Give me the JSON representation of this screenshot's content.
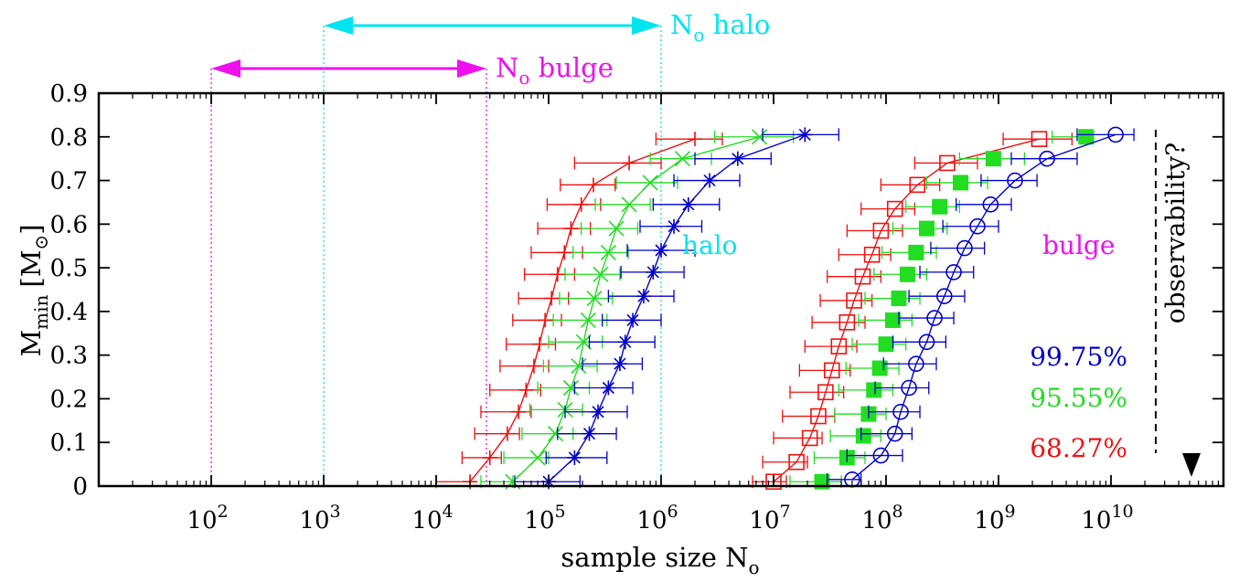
{
  "chart_data": {
    "type": "scatter",
    "x_scale": "log",
    "xlim": [
      10.0,
      100000000000.0
    ],
    "ylim": [
      0,
      0.9
    ],
    "xlabel": {
      "text": "sample size N",
      "subscript": "o"
    },
    "ylabel": {
      "text": "M",
      "subscript": "min",
      "unit": "[M",
      "unit_subscript": "⊙",
      "unit_close": "]"
    },
    "x_ticks": [
      {
        "value": 100,
        "base": "10",
        "exp": "2"
      },
      {
        "value": 1000,
        "base": "10",
        "exp": "3"
      },
      {
        "value": 10000,
        "base": "10",
        "exp": "4"
      },
      {
        "value": 100000,
        "base": "10",
        "exp": "5"
      },
      {
        "value": 1000000,
        "base": "10",
        "exp": "6"
      },
      {
        "value": 10000000,
        "base": "10",
        "exp": "7"
      },
      {
        "value": 100000000,
        "base": "10",
        "exp": "8"
      },
      {
        "value": 1000000000,
        "base": "10",
        "exp": "9"
      },
      {
        "value": 10000000000,
        "base": "10",
        "exp": "10"
      }
    ],
    "y_ticks": [
      "0",
      "0.1",
      "0.2",
      "0.3",
      "0.4",
      "0.5",
      "0.6",
      "0.7",
      "0.8",
      "0.9"
    ],
    "y_tick_values": [
      0,
      0.1,
      0.2,
      0.3,
      0.4,
      0.5,
      0.6,
      0.7,
      0.8,
      0.9
    ],
    "series_labels": {
      "halo": "halo",
      "bulge": "bulge"
    },
    "confidence_levels": [
      {
        "text": "99.75%",
        "color": "#0000cc"
      },
      {
        "text": "95.55%",
        "color": "#22dd22"
      },
      {
        "text": "68.27%",
        "color": "#ee1111"
      }
    ],
    "observability": {
      "text": "observability?",
      "x": 25000000000
    },
    "ranges": [
      {
        "name": "halo",
        "label": "N",
        "label_sub": "o",
        "label_rest": " halo",
        "from": 1000,
        "to": 1000000,
        "color": "#00e5ee"
      },
      {
        "name": "bulge",
        "label": "N",
        "label_sub": "o",
        "label_rest": " bulge",
        "from": 100,
        "to": 28000,
        "color": "#ee11ee"
      }
    ],
    "series": [
      {
        "group": "halo",
        "level": "68.27%",
        "color": "#ee1111",
        "marker": "plus",
        "curve": true,
        "points": [
          {
            "x": 20000,
            "y": 0.01,
            "lo": 10000,
            "hi": 20000
          },
          {
            "x": 30000,
            "y": 0.065,
            "lo": 17000,
            "hi": 38000
          },
          {
            "x": 43000,
            "y": 0.12,
            "lo": 22000,
            "hi": 55000
          },
          {
            "x": 54000,
            "y": 0.17,
            "lo": 25000,
            "hi": 70000
          },
          {
            "x": 63000,
            "y": 0.22,
            "lo": 30000,
            "hi": 85000
          },
          {
            "x": 74000,
            "y": 0.275,
            "lo": 37000,
            "hi": 100000
          },
          {
            "x": 83000,
            "y": 0.325,
            "lo": 42000,
            "hi": 115000
          },
          {
            "x": 93000,
            "y": 0.38,
            "lo": 48000,
            "hi": 130000
          },
          {
            "x": 106000,
            "y": 0.43,
            "lo": 54000,
            "hi": 150000
          },
          {
            "x": 120000,
            "y": 0.485,
            "lo": 61000,
            "hi": 170000
          },
          {
            "x": 138000,
            "y": 0.535,
            "lo": 70000,
            "hi": 200000
          },
          {
            "x": 158000,
            "y": 0.59,
            "lo": 80000,
            "hi": 235000
          },
          {
            "x": 195000,
            "y": 0.645,
            "lo": 97000,
            "hi": 290000
          },
          {
            "x": 250000,
            "y": 0.69,
            "lo": 127000,
            "hi": 390000
          },
          {
            "x": 520000,
            "y": 0.74,
            "lo": 170000,
            "hi": 1000000
          },
          {
            "x": 2000000,
            "y": 0.795,
            "lo": 900000,
            "hi": 3500000
          }
        ]
      },
      {
        "group": "halo",
        "level": "95.55%",
        "color": "#22dd22",
        "marker": "cross",
        "curve": true,
        "points": [
          {
            "x": 48000,
            "y": 0.01,
            "lo": 25000,
            "hi": 48000
          },
          {
            "x": 80000,
            "y": 0.065,
            "lo": 40000,
            "hi": 100000
          },
          {
            "x": 115000,
            "y": 0.12,
            "lo": 58000,
            "hi": 165000
          },
          {
            "x": 140000,
            "y": 0.175,
            "lo": 68000,
            "hi": 200000
          },
          {
            "x": 158000,
            "y": 0.225,
            "lo": 80000,
            "hi": 230000
          },
          {
            "x": 185000,
            "y": 0.275,
            "lo": 90000,
            "hi": 270000
          },
          {
            "x": 205000,
            "y": 0.33,
            "lo": 100000,
            "hi": 300000
          },
          {
            "x": 225000,
            "y": 0.38,
            "lo": 110000,
            "hi": 330000
          },
          {
            "x": 255000,
            "y": 0.43,
            "lo": 125000,
            "hi": 370000
          },
          {
            "x": 290000,
            "y": 0.485,
            "lo": 140000,
            "hi": 430000
          },
          {
            "x": 340000,
            "y": 0.535,
            "lo": 165000,
            "hi": 510000
          },
          {
            "x": 400000,
            "y": 0.59,
            "lo": 195000,
            "hi": 620000
          },
          {
            "x": 520000,
            "y": 0.645,
            "lo": 260000,
            "hi": 800000
          },
          {
            "x": 800000,
            "y": 0.695,
            "lo": 400000,
            "hi": 1400000
          },
          {
            "x": 1550000,
            "y": 0.75,
            "lo": 800000,
            "hi": 2800000
          },
          {
            "x": 7500000,
            "y": 0.8,
            "lo": 3000000,
            "hi": 15000000
          }
        ]
      },
      {
        "group": "halo",
        "level": "99.75%",
        "color": "#0000cc",
        "marker": "star",
        "curve": true,
        "points": [
          {
            "x": 100000,
            "y": 0.01,
            "lo": 50000,
            "hi": 190000
          },
          {
            "x": 170000,
            "y": 0.065,
            "lo": 95000,
            "hi": 330000
          },
          {
            "x": 230000,
            "y": 0.12,
            "lo": 120000,
            "hi": 400000
          },
          {
            "x": 275000,
            "y": 0.17,
            "lo": 140000,
            "hi": 500000
          },
          {
            "x": 340000,
            "y": 0.225,
            "lo": 170000,
            "hi": 560000
          },
          {
            "x": 430000,
            "y": 0.28,
            "lo": 200000,
            "hi": 680000
          },
          {
            "x": 480000,
            "y": 0.33,
            "lo": 230000,
            "hi": 880000
          },
          {
            "x": 560000,
            "y": 0.38,
            "lo": 300000,
            "hi": 1000000
          },
          {
            "x": 700000,
            "y": 0.435,
            "lo": 340000,
            "hi": 1300000
          },
          {
            "x": 850000,
            "y": 0.49,
            "lo": 440000,
            "hi": 1600000
          },
          {
            "x": 1000000,
            "y": 0.54,
            "lo": 500000,
            "hi": 2000000
          },
          {
            "x": 1300000,
            "y": 0.595,
            "lo": 650000,
            "hi": 2300000
          },
          {
            "x": 1750000,
            "y": 0.645,
            "lo": 850000,
            "hi": 3300000
          },
          {
            "x": 2700000,
            "y": 0.7,
            "lo": 1300000,
            "hi": 5000000
          },
          {
            "x": 4800000,
            "y": 0.75,
            "lo": 2000000,
            "hi": 9500000
          },
          {
            "x": 19000000,
            "y": 0.805,
            "lo": 8000000,
            "hi": 38000000
          }
        ]
      },
      {
        "group": "bulge",
        "level": "68.27%",
        "color": "#ee1111",
        "marker": "open-square",
        "curve": true,
        "points": [
          {
            "x": 10000000,
            "y": 0.01,
            "lo": 6500000,
            "hi": 13000000
          },
          {
            "x": 16000000,
            "y": 0.055,
            "lo": 8000000,
            "hi": 20000000
          },
          {
            "x": 21000000,
            "y": 0.11,
            "lo": 10000000,
            "hi": 27000000
          },
          {
            "x": 25000000,
            "y": 0.16,
            "lo": 12000000,
            "hi": 35000000
          },
          {
            "x": 29000000,
            "y": 0.215,
            "lo": 14000000,
            "hi": 42000000
          },
          {
            "x": 33000000,
            "y": 0.265,
            "lo": 17000000,
            "hi": 48000000
          },
          {
            "x": 38000000,
            "y": 0.32,
            "lo": 19000000,
            "hi": 55000000
          },
          {
            "x": 45000000,
            "y": 0.375,
            "lo": 22000000,
            "hi": 65000000
          },
          {
            "x": 52000000,
            "y": 0.425,
            "lo": 26000000,
            "hi": 75000000
          },
          {
            "x": 62000000,
            "y": 0.48,
            "lo": 30000000,
            "hi": 90000000
          },
          {
            "x": 75000000,
            "y": 0.53,
            "lo": 38000000,
            "hi": 110000000
          },
          {
            "x": 90000000,
            "y": 0.585,
            "lo": 45000000,
            "hi": 140000000
          },
          {
            "x": 120000000,
            "y": 0.635,
            "lo": 60000000,
            "hi": 180000000
          },
          {
            "x": 190000000,
            "y": 0.69,
            "lo": 90000000,
            "hi": 300000000
          },
          {
            "x": 350000000,
            "y": 0.74,
            "lo": 180000000,
            "hi": 650000000
          },
          {
            "x": 2300000000,
            "y": 0.795,
            "lo": 1100000000,
            "hi": 4500000000
          }
        ]
      },
      {
        "group": "bulge",
        "level": "95.55%",
        "color": "#22dd22",
        "marker": "filled-square",
        "curve": false,
        "points": [
          {
            "x": 27000000,
            "y": 0.01,
            "lo": 14000000,
            "hi": 40000000
          },
          {
            "x": 45000000,
            "y": 0.065,
            "lo": 23000000,
            "hi": 65000000
          },
          {
            "x": 63000000,
            "y": 0.115,
            "lo": 32000000,
            "hi": 90000000
          },
          {
            "x": 70000000,
            "y": 0.165,
            "lo": 35000000,
            "hi": 100000000
          },
          {
            "x": 78000000,
            "y": 0.22,
            "lo": 38000000,
            "hi": 115000000
          },
          {
            "x": 88000000,
            "y": 0.27,
            "lo": 44000000,
            "hi": 130000000
          },
          {
            "x": 100000000,
            "y": 0.325,
            "lo": 50000000,
            "hi": 150000000
          },
          {
            "x": 115000000,
            "y": 0.38,
            "lo": 57000000,
            "hi": 170000000
          },
          {
            "x": 130000000,
            "y": 0.43,
            "lo": 65000000,
            "hi": 200000000
          },
          {
            "x": 155000000,
            "y": 0.485,
            "lo": 78000000,
            "hi": 230000000
          },
          {
            "x": 185000000,
            "y": 0.535,
            "lo": 92000000,
            "hi": 280000000
          },
          {
            "x": 230000000,
            "y": 0.59,
            "lo": 115000000,
            "hi": 350000000
          },
          {
            "x": 300000000,
            "y": 0.64,
            "lo": 150000000,
            "hi": 450000000
          },
          {
            "x": 460000000,
            "y": 0.695,
            "lo": 230000000,
            "hi": 800000000
          },
          {
            "x": 900000000,
            "y": 0.75,
            "lo": 450000000,
            "hi": 1700000000
          },
          {
            "x": 6000000000,
            "y": 0.8,
            "lo": 3000000000,
            "hi": 7000000000
          }
        ]
      },
      {
        "group": "bulge",
        "level": "99.75%",
        "color": "#0000cc",
        "marker": "open-circle",
        "curve": true,
        "points": [
          {
            "x": 50000000,
            "y": 0.015,
            "lo": 30000000,
            "hi": 60000000
          },
          {
            "x": 90000000,
            "y": 0.07,
            "lo": 45000000,
            "hi": 140000000
          },
          {
            "x": 120000000,
            "y": 0.12,
            "lo": 60000000,
            "hi": 170000000
          },
          {
            "x": 135000000,
            "y": 0.17,
            "lo": 70000000,
            "hi": 200000000
          },
          {
            "x": 160000000,
            "y": 0.225,
            "lo": 80000000,
            "hi": 240000000
          },
          {
            "x": 185000000,
            "y": 0.28,
            "lo": 95000000,
            "hi": 280000000
          },
          {
            "x": 230000000,
            "y": 0.33,
            "lo": 115000000,
            "hi": 340000000
          },
          {
            "x": 270000000,
            "y": 0.385,
            "lo": 130000000,
            "hi": 400000000
          },
          {
            "x": 330000000,
            "y": 0.435,
            "lo": 160000000,
            "hi": 500000000
          },
          {
            "x": 400000000,
            "y": 0.49,
            "lo": 200000000,
            "hi": 600000000
          },
          {
            "x": 500000000,
            "y": 0.545,
            "lo": 250000000,
            "hi": 750000000
          },
          {
            "x": 650000000,
            "y": 0.595,
            "lo": 320000000,
            "hi": 1000000000
          },
          {
            "x": 850000000,
            "y": 0.645,
            "lo": 420000000,
            "hi": 1300000000
          },
          {
            "x": 1400000000,
            "y": 0.7,
            "lo": 700000000,
            "hi": 2200000000
          },
          {
            "x": 2700000000,
            "y": 0.75,
            "lo": 1300000000,
            "hi": 5000000000
          },
          {
            "x": 11000000000,
            "y": 0.805,
            "lo": 5000000000,
            "hi": 16000000000
          }
        ]
      }
    ]
  }
}
